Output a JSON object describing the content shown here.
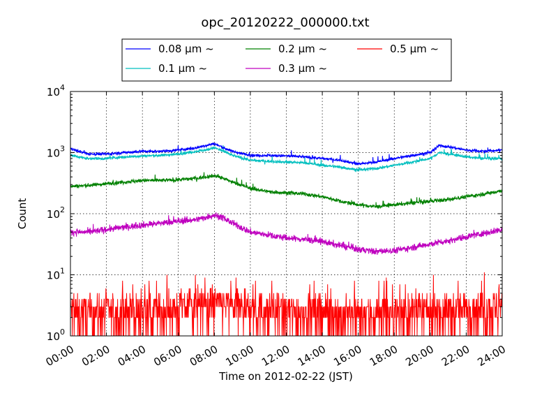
{
  "chart_data": {
    "type": "line",
    "title": "opc_20120222_000000.txt",
    "xlabel": "Time on 2012-02-22 (JST)",
    "ylabel": "Count",
    "x_ticks": [
      "00:00",
      "02:00",
      "04:00",
      "06:00",
      "08:00",
      "10:00",
      "12:00",
      "14:00",
      "16:00",
      "18:00",
      "20:00",
      "22:00",
      "24:00"
    ],
    "xlim_hours": [
      0,
      24
    ],
    "yscale": "log",
    "ylim": [
      1,
      10000
    ],
    "y_ticks": [
      {
        "base": "10",
        "exp": "0"
      },
      {
        "base": "10",
        "exp": "1"
      },
      {
        "base": "10",
        "exp": "2"
      },
      {
        "base": "10",
        "exp": "3"
      },
      {
        "base": "10",
        "exp": "4"
      }
    ],
    "grid": true,
    "legend_position": "top-center",
    "series": [
      {
        "name": "0.08 μm ~",
        "color": "#0000ff",
        "x": [
          0,
          1,
          2,
          3,
          4,
          5,
          6,
          7,
          7.5,
          8,
          8.5,
          9,
          10,
          11,
          12,
          13,
          14,
          15,
          16,
          17,
          18,
          19,
          20,
          20.5,
          21,
          22,
          23,
          24
        ],
        "y": [
          1150,
          950,
          950,
          1000,
          1050,
          1050,
          1100,
          1200,
          1300,
          1400,
          1200,
          1050,
          900,
          900,
          880,
          850,
          800,
          750,
          650,
          700,
          800,
          900,
          1000,
          1300,
          1250,
          1100,
          1050,
          1100
        ]
      },
      {
        "name": "0.1 μm ~",
        "color": "#00bfbf",
        "x": [
          0,
          1,
          2,
          3,
          4,
          5,
          6,
          7,
          7.5,
          8,
          8.5,
          9,
          10,
          11,
          12,
          13,
          14,
          15,
          16,
          17,
          18,
          19,
          20,
          20.5,
          21,
          22,
          23,
          24
        ],
        "y": [
          900,
          800,
          800,
          850,
          880,
          900,
          950,
          1050,
          1100,
          1200,
          1050,
          900,
          750,
          720,
          700,
          680,
          620,
          580,
          520,
          550,
          620,
          700,
          800,
          1000,
          950,
          850,
          800,
          800
        ]
      },
      {
        "name": "0.2 μm ~",
        "color": "#008000",
        "x": [
          0,
          1,
          2,
          3,
          4,
          5,
          6,
          7,
          8,
          8.5,
          9,
          10,
          11,
          12,
          13,
          14,
          15,
          16,
          17,
          18,
          19,
          20,
          21,
          22,
          23,
          24
        ],
        "y": [
          280,
          290,
          310,
          330,
          350,
          350,
          360,
          380,
          420,
          380,
          330,
          260,
          230,
          220,
          210,
          190,
          160,
          140,
          130,
          140,
          150,
          160,
          170,
          190,
          210,
          240
        ]
      },
      {
        "name": "0.3 μm ~",
        "color": "#bf00bf",
        "x": [
          0,
          1,
          2,
          3,
          4,
          5,
          6,
          7,
          8,
          8.5,
          9,
          10,
          11,
          12,
          13,
          14,
          15,
          16,
          17,
          18,
          19,
          20,
          21,
          22,
          23,
          24
        ],
        "y": [
          50,
          50,
          55,
          60,
          65,
          70,
          75,
          80,
          95,
          85,
          70,
          50,
          45,
          40,
          38,
          35,
          30,
          26,
          24,
          25,
          28,
          32,
          36,
          42,
          48,
          55
        ]
      },
      {
        "name": "0.5 μm ~",
        "color": "#ff0000",
        "x": [
          0,
          4,
          8,
          12,
          16,
          20,
          24
        ],
        "y": [
          2.5,
          2.5,
          3.5,
          2.5,
          2.2,
          2.5,
          3
        ]
      }
    ]
  }
}
